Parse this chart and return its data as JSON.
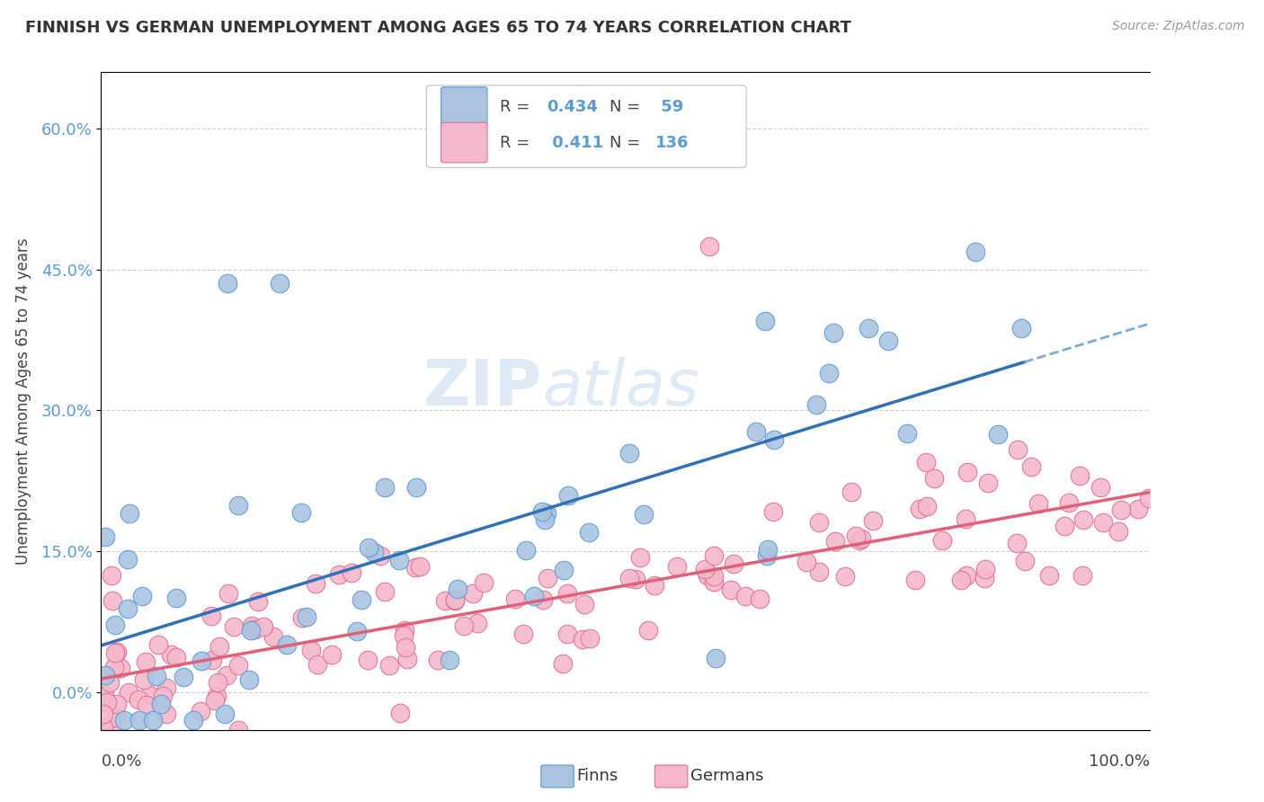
{
  "title": "FINNISH VS GERMAN UNEMPLOYMENT AMONG AGES 65 TO 74 YEARS CORRELATION CHART",
  "source": "Source: ZipAtlas.com",
  "ylabel": "Unemployment Among Ages 65 to 74 years",
  "yticks": [
    "0.0%",
    "15.0%",
    "30.0%",
    "45.0%",
    "60.0%"
  ],
  "ytick_vals": [
    0.0,
    0.15,
    0.3,
    0.45,
    0.6
  ],
  "xlim": [
    0.0,
    1.0
  ],
  "ylim": [
    -0.04,
    0.66
  ],
  "finns_color": "#aac4e0",
  "finns_edge": "#5b9bd5",
  "germans_color": "#f4b8cb",
  "germans_edge": "#e07090",
  "trend_finns_color": "#3070b8",
  "trend_finns_dash_color": "#7aaad8",
  "trend_germans_color": "#e0607a",
  "background_color": "#ffffff",
  "grid_color": "#d0d0d0",
  "watermark_zip": "ZIP",
  "watermark_atlas": "atlas",
  "finn_R": "0.434",
  "finn_N": "59",
  "german_R": "0.411",
  "german_N": "136",
  "legend_R_color": "#5b9bd5",
  "legend_N_color": "#5b9bd5",
  "legend_text_color": "#444444"
}
